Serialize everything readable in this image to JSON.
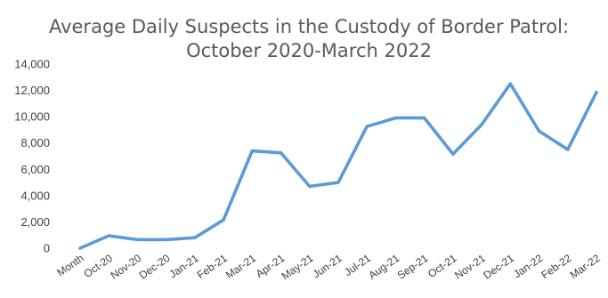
{
  "chart_data": {
    "type": "line",
    "title": [
      "Average Daily Suspects in the Custody of Border Patrol:",
      "October 2020-March 2022"
    ],
    "xlabel": "",
    "ylabel": "",
    "categories": [
      "Month",
      "Oct-20",
      "Nov-20",
      "Dec-20",
      "Jan-21",
      "Feb-21",
      "Mar-21",
      "Apr-21",
      "May-21",
      "Jun-21",
      "Jul-21",
      "Aug-21",
      "Sep-21",
      "Oct-21",
      "Nov-21",
      "Dec-21",
      "Jan-22",
      "Feb-22",
      "Mar-22"
    ],
    "series": [
      {
        "values": [
          0,
          950,
          650,
          650,
          800,
          2150,
          7400,
          7250,
          4700,
          5000,
          9250,
          9900,
          9900,
          7150,
          9400,
          12500,
          8900,
          7500,
          11850
        ],
        "color": "#5b9bd5"
      }
    ],
    "ylim": [
      0,
      14000
    ],
    "yticks": [
      "0",
      "2,000",
      "4,000",
      "6,000",
      "8,000",
      "10,000",
      "12,000",
      "14,000"
    ],
    "grid": false,
    "legend": "none"
  }
}
